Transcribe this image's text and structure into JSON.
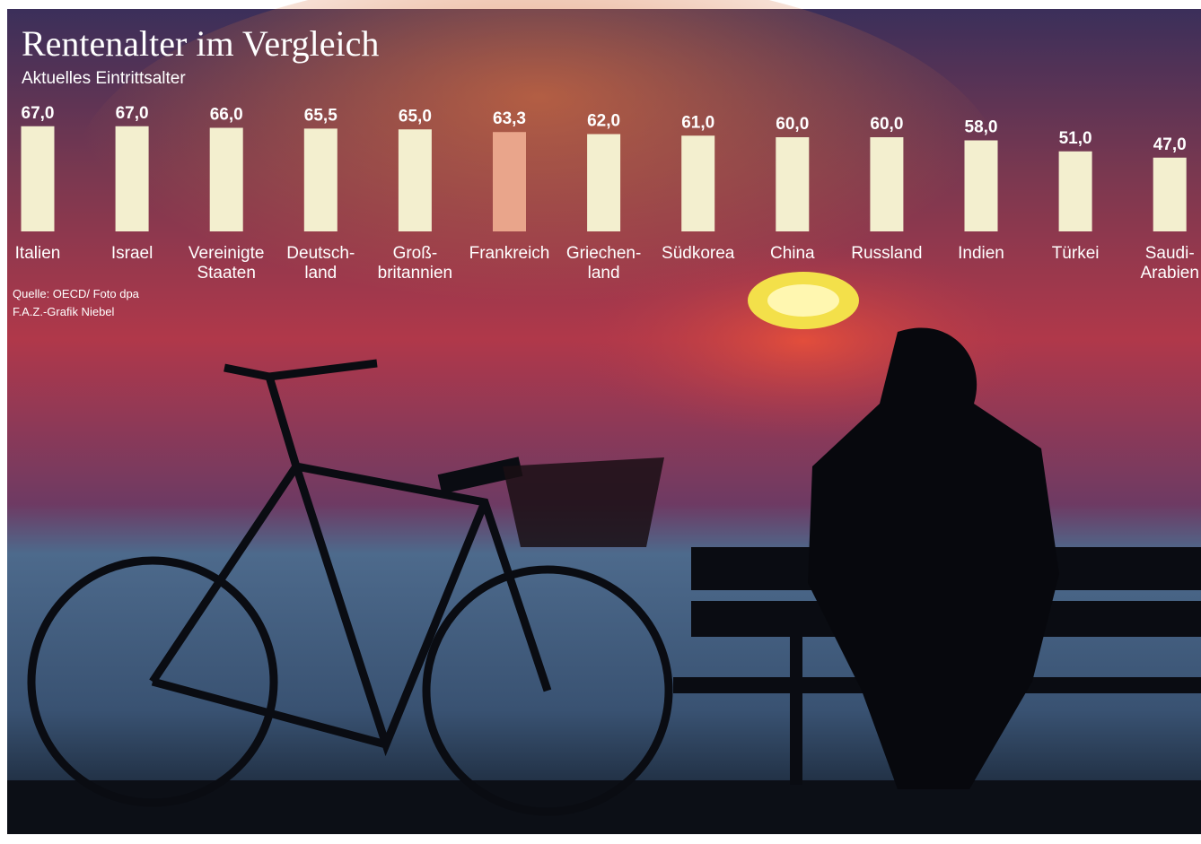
{
  "chart_data": {
    "type": "bar",
    "title": "Rentenalter im Vergleich",
    "subtitle": "Aktuelles Eintrittsalter",
    "categories": [
      "Italien",
      "Israel",
      "Vereinigte\nStaaten",
      "Deutsch-\nland",
      "Groß-\nbritannien",
      "Frankreich",
      "Griechen-\nland",
      "Südkorea",
      "China",
      "Russland",
      "Indien",
      "Türkei",
      "Saudi-\nArabien"
    ],
    "values": [
      67.0,
      67.0,
      66.0,
      65.5,
      65.0,
      63.3,
      62.0,
      61.0,
      60.0,
      60.0,
      58.0,
      51.0,
      47.0
    ],
    "value_labels": [
      "67,0",
      "67,0",
      "66,0",
      "65,5",
      "65,0",
      "63,3",
      "62,0",
      "61,0",
      "60,0",
      "60,0",
      "58,0",
      "51,0",
      "47,0"
    ],
    "colors": [
      "#f3efcf",
      "#f3efcf",
      "#f3efcf",
      "#f3efcf",
      "#f3efcf",
      "#e9a58b",
      "#f3efcf",
      "#f3efcf",
      "#f3efcf",
      "#f3efcf",
      "#f3efcf",
      "#f3efcf",
      "#f3efcf"
    ],
    "source": "Quelle: OECD/ Foto dpa",
    "credit": "F.A.Z.-Grafik Niebel"
  }
}
